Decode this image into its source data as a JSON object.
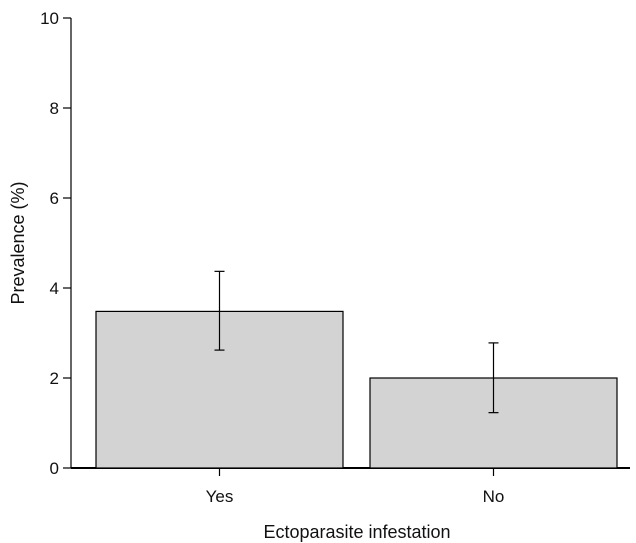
{
  "chart_data": {
    "type": "bar",
    "title": "",
    "xlabel": "Ectoparasite infestation",
    "ylabel": "Prevalence (%)",
    "categories": [
      "Yes",
      "No"
    ],
    "values": [
      3.48,
      2.0
    ],
    "error_bars": [
      {
        "low": 2.62,
        "high": 4.37
      },
      {
        "low": 1.23,
        "high": 2.78
      }
    ],
    "ylim": [
      0,
      10
    ],
    "yticks": [
      0,
      2,
      4,
      6,
      8,
      10
    ],
    "grid": false,
    "legend": "none",
    "colors": {
      "bar_fill": "#d3d3d3",
      "bar_stroke": "#000000",
      "axis": "#000000"
    }
  }
}
